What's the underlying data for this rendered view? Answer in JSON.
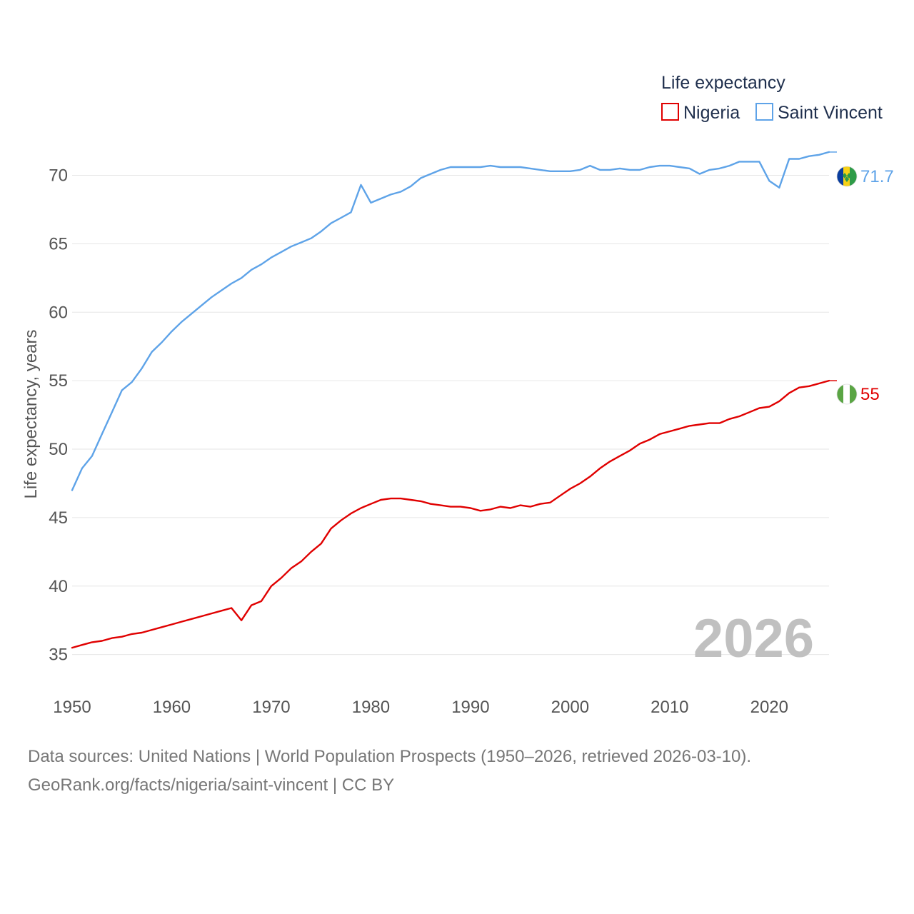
{
  "legend": {
    "title": "Life expectancy",
    "items": [
      {
        "label": "Nigeria",
        "color": "#e00000"
      },
      {
        "label": "Saint Vincent",
        "color": "#5ea3e8"
      }
    ]
  },
  "chart_data": {
    "type": "line",
    "ylabel": "Life expectancy, years",
    "xlabel": "",
    "xlim": [
      1950,
      2026
    ],
    "ylim": [
      33,
      73
    ],
    "x_ticks": [
      "1950",
      "1960",
      "1970",
      "1980",
      "1990",
      "2000",
      "2010",
      "2020"
    ],
    "y_ticks": [
      "35",
      "40",
      "45",
      "50",
      "55",
      "60",
      "65",
      "70"
    ],
    "year_watermark": "2026",
    "x": [
      1950,
      1951,
      1952,
      1953,
      1954,
      1955,
      1956,
      1957,
      1958,
      1959,
      1960,
      1961,
      1962,
      1963,
      1964,
      1965,
      1966,
      1967,
      1968,
      1969,
      1970,
      1971,
      1972,
      1973,
      1974,
      1975,
      1976,
      1977,
      1978,
      1979,
      1980,
      1981,
      1982,
      1983,
      1984,
      1985,
      1986,
      1987,
      1988,
      1989,
      1990,
      1991,
      1992,
      1993,
      1994,
      1995,
      1996,
      1997,
      1998,
      1999,
      2000,
      2001,
      2002,
      2003,
      2004,
      2005,
      2006,
      2007,
      2008,
      2009,
      2010,
      2011,
      2012,
      2013,
      2014,
      2015,
      2016,
      2017,
      2018,
      2019,
      2020,
      2021,
      2022,
      2023,
      2024,
      2025,
      2026
    ],
    "series": [
      {
        "name": "Nigeria",
        "color": "#e00000",
        "end_label": "55",
        "values": [
          35.5,
          35.7,
          35.9,
          36.0,
          36.2,
          36.3,
          36.5,
          36.6,
          36.8,
          37.0,
          37.2,
          37.4,
          37.6,
          37.8,
          38.0,
          38.2,
          38.4,
          37.5,
          38.6,
          38.9,
          40.0,
          40.6,
          41.3,
          41.8,
          42.5,
          43.1,
          44.2,
          44.8,
          45.3,
          45.7,
          46.0,
          46.3,
          46.4,
          46.4,
          46.3,
          46.2,
          46.0,
          45.9,
          45.8,
          45.8,
          45.7,
          45.5,
          45.6,
          45.8,
          45.7,
          45.9,
          45.8,
          46.0,
          46.1,
          46.6,
          47.1,
          47.5,
          48.0,
          48.6,
          49.1,
          49.5,
          49.9,
          50.4,
          50.7,
          51.1,
          51.3,
          51.5,
          51.7,
          51.8,
          51.9,
          51.9,
          52.2,
          52.4,
          52.7,
          53.0,
          53.1,
          53.5,
          54.1,
          54.5,
          54.6,
          54.8,
          55.0
        ]
      },
      {
        "name": "Saint Vincent",
        "color": "#5ea3e8",
        "end_label": "71.7",
        "values": [
          47.0,
          48.6,
          49.5,
          51.1,
          52.7,
          54.3,
          54.9,
          55.9,
          57.1,
          57.8,
          58.6,
          59.3,
          59.9,
          60.5,
          61.1,
          61.6,
          62.1,
          62.5,
          63.1,
          63.5,
          64.0,
          64.4,
          64.8,
          65.1,
          65.4,
          65.9,
          66.5,
          66.9,
          67.3,
          69.3,
          68.0,
          68.3,
          68.6,
          68.8,
          69.2,
          69.8,
          70.1,
          70.4,
          70.6,
          70.6,
          70.6,
          70.6,
          70.7,
          70.6,
          70.6,
          70.6,
          70.5,
          70.4,
          70.3,
          70.3,
          70.3,
          70.4,
          70.7,
          70.4,
          70.4,
          70.5,
          70.4,
          70.4,
          70.6,
          70.7,
          70.7,
          70.6,
          70.5,
          70.1,
          70.4,
          70.5,
          70.7,
          71.0,
          71.0,
          71.0,
          69.6,
          69.1,
          71.2,
          71.2,
          71.4,
          71.5,
          71.7
        ]
      }
    ]
  },
  "source": {
    "line1": "Data sources: United Nations | World Population Prospects (1950–2026, retrieved 2026-03-10).",
    "line2": "GeoRank.org/facts/nigeria/saint-vincent | CC BY"
  }
}
